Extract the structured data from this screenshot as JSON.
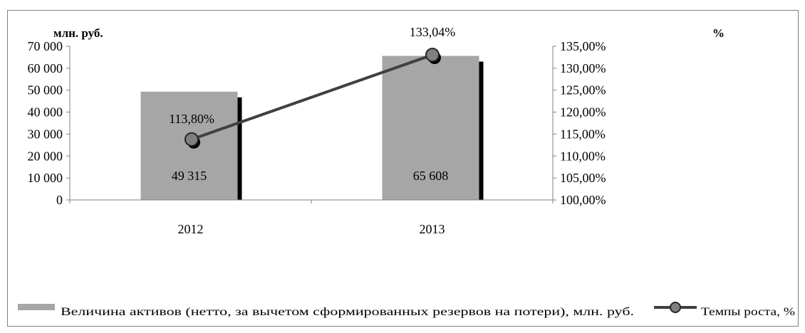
{
  "chart_data": {
    "type": "bar",
    "categories": [
      "2012",
      "2013"
    ],
    "series": [
      {
        "name": "Величина активов (нетто, за вычетом сформированных резервов на потери), млн. руб.",
        "type": "bar",
        "axis": "left",
        "values": [
          49315,
          65608
        ],
        "labels": [
          "49 315",
          "65 608"
        ],
        "color": "#a6a6a6"
      },
      {
        "name": "Темпы роста, %",
        "type": "line",
        "axis": "right",
        "values": [
          113.8,
          133.04
        ],
        "labels": [
          "113,80%",
          "133,04%"
        ],
        "color": "#404040"
      }
    ],
    "y_left": {
      "label": "млн. руб.",
      "min": 0,
      "max": 70000,
      "ticks": [
        0,
        10000,
        20000,
        30000,
        40000,
        50000,
        60000,
        70000
      ],
      "tick_labels": [
        "0",
        "10 000",
        "20 000",
        "30 000",
        "40 000",
        "50 000",
        "60 000",
        "70 000"
      ]
    },
    "y_right": {
      "label": "%",
      "min": 100,
      "max": 135,
      "ticks": [
        100,
        105,
        110,
        115,
        120,
        125,
        130,
        135
      ],
      "tick_labels": [
        "100,00%",
        "105,00%",
        "110,00%",
        "115,00%",
        "120,00%",
        "125,00%",
        "130,00%",
        "135,00%"
      ]
    },
    "grid": false,
    "legend_position": "bottom"
  }
}
